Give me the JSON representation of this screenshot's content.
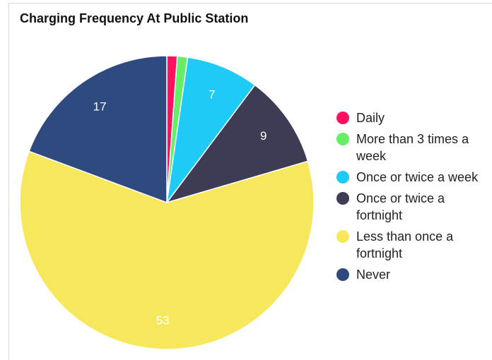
{
  "chart_data": {
    "type": "pie",
    "title": "Charging Frequency At Public Station",
    "categories": [
      "Daily",
      "More than 3 times a week",
      "Once or twice a week",
      "Once or twice a fortnight",
      "Less than once a fortnight",
      "Never"
    ],
    "values": [
      1,
      1,
      7,
      9,
      53,
      17
    ],
    "data_labels": [
      "",
      "",
      "7",
      "9",
      "53",
      "17"
    ],
    "colors": [
      "#ff1060",
      "#66ee66",
      "#1ecbf7",
      "#3e3c55",
      "#f7e75c",
      "#2f4a7e"
    ],
    "legend_placement": "right"
  }
}
